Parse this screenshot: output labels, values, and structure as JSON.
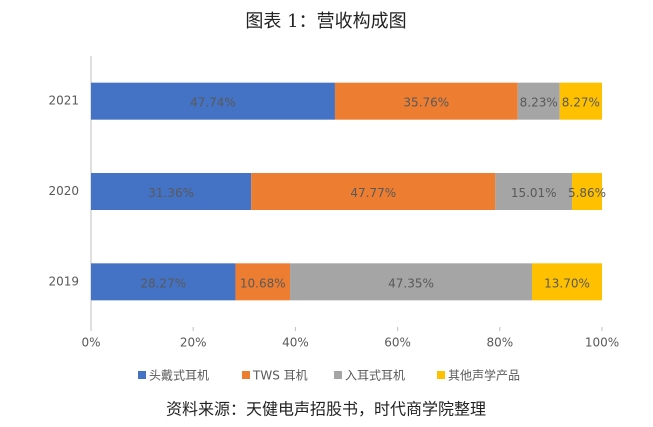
{
  "chart_data": {
    "type": "stacked_barh",
    "title": "图表 1：营收构成图",
    "categories": [
      "2021",
      "2020",
      "2019"
    ],
    "series": [
      {
        "name": "头戴式耳机",
        "color": "#4472c4",
        "values": [
          47.74,
          31.36,
          28.27
        ],
        "value_labels": [
          "47.74%",
          "31.36%",
          "28.27%"
        ]
      },
      {
        "name": "TWS 耳机",
        "color": "#ed7d31",
        "values": [
          35.76,
          47.77,
          10.68
        ],
        "value_labels": [
          "35.76%",
          "47.77%",
          "10.68%"
        ]
      },
      {
        "name": "入耳式耳机",
        "color": "#a5a5a5",
        "values": [
          8.23,
          15.01,
          47.35
        ],
        "value_labels": [
          "8.23%",
          "15.01%",
          "47.35%"
        ]
      },
      {
        "name": "其他声学产品",
        "color": "#ffc000",
        "values": [
          8.27,
          5.86,
          13.7
        ],
        "value_labels": [
          "8.27%",
          "5.86%",
          "13.70%"
        ]
      }
    ],
    "xlim": [
      0,
      100
    ],
    "xticks": [
      {
        "value": 0,
        "label": "0%"
      },
      {
        "value": 20,
        "label": "20%"
      },
      {
        "value": 40,
        "label": "40%"
      },
      {
        "value": 60,
        "label": "60%"
      },
      {
        "value": 80,
        "label": "80%"
      },
      {
        "value": 100,
        "label": "100%"
      }
    ],
    "legend": "bottom",
    "note": "资料来源：天健电声招股书，时代商学院整理"
  }
}
